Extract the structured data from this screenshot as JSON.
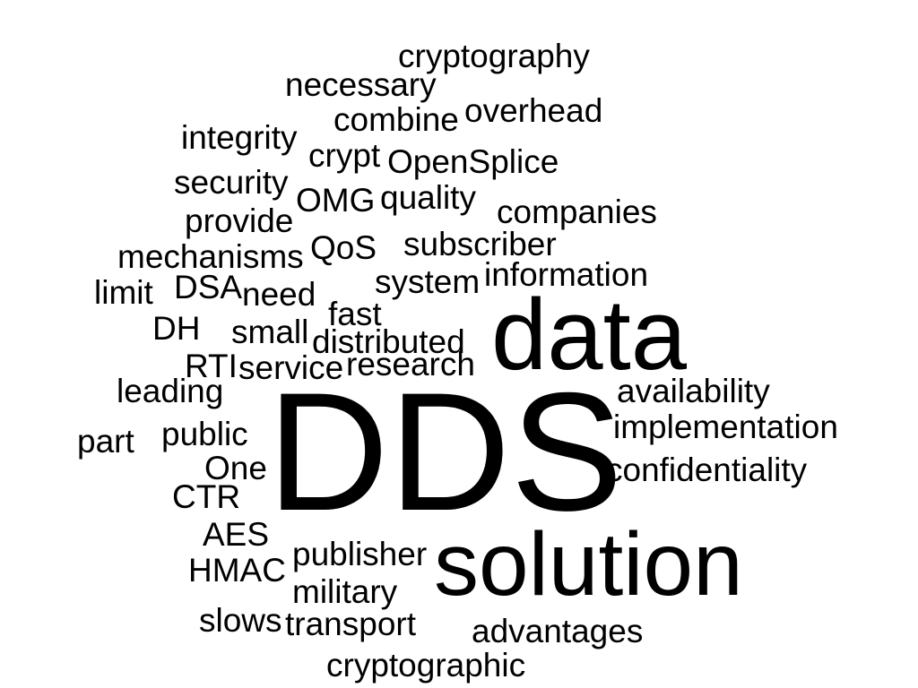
{
  "words": [
    {
      "id": "dds",
      "text": "DDS"
    },
    {
      "id": "data",
      "text": "data"
    },
    {
      "id": "solution",
      "text": "solution"
    },
    {
      "id": "cryptography",
      "text": "cryptography"
    },
    {
      "id": "necessary",
      "text": "necessary"
    },
    {
      "id": "overhead",
      "text": "overhead"
    },
    {
      "id": "combine",
      "text": "combine"
    },
    {
      "id": "integrity",
      "text": "integrity"
    },
    {
      "id": "crypt",
      "text": "crypt"
    },
    {
      "id": "opensplice",
      "text": "OpenSplice"
    },
    {
      "id": "security",
      "text": "security"
    },
    {
      "id": "omg",
      "text": "OMG"
    },
    {
      "id": "quality",
      "text": "quality"
    },
    {
      "id": "companies",
      "text": "companies"
    },
    {
      "id": "provide",
      "text": "provide"
    },
    {
      "id": "subscriber",
      "text": "subscriber"
    },
    {
      "id": "qos",
      "text": "QoS"
    },
    {
      "id": "mechanisms",
      "text": "mechanisms"
    },
    {
      "id": "information",
      "text": "information"
    },
    {
      "id": "system",
      "text": "system"
    },
    {
      "id": "limit",
      "text": "limit"
    },
    {
      "id": "dsa",
      "text": "DSA"
    },
    {
      "id": "need",
      "text": "need"
    },
    {
      "id": "fast",
      "text": "fast"
    },
    {
      "id": "dh",
      "text": "DH"
    },
    {
      "id": "small",
      "text": "small"
    },
    {
      "id": "distributed",
      "text": "distributed"
    },
    {
      "id": "rti",
      "text": "RTI"
    },
    {
      "id": "service",
      "text": "service"
    },
    {
      "id": "research",
      "text": "research"
    },
    {
      "id": "leading",
      "text": "leading"
    },
    {
      "id": "availability",
      "text": "availability"
    },
    {
      "id": "implementation",
      "text": "implementation"
    },
    {
      "id": "part",
      "text": "part"
    },
    {
      "id": "public",
      "text": "public"
    },
    {
      "id": "one",
      "text": "One"
    },
    {
      "id": "confidentiality",
      "text": "confidentiality"
    },
    {
      "id": "ctr",
      "text": "CTR"
    },
    {
      "id": "aes",
      "text": "AES"
    },
    {
      "id": "publisher",
      "text": "publisher"
    },
    {
      "id": "hmac",
      "text": "HMAC"
    },
    {
      "id": "military",
      "text": "military"
    },
    {
      "id": "slows",
      "text": "slows"
    },
    {
      "id": "transport",
      "text": "transport"
    },
    {
      "id": "advantages",
      "text": "advantages"
    },
    {
      "id": "cryptographic",
      "text": "cryptographic"
    }
  ]
}
